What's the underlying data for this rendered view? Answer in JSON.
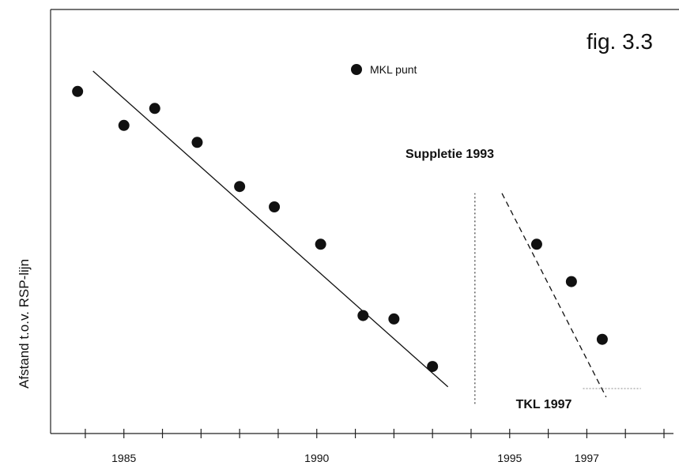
{
  "chart_data": {
    "type": "scatter",
    "figure_label": "fig.  3.3",
    "ylabel": "Afstand t.o.v. RSP-lijn",
    "xlabel": "",
    "x_unit": "year",
    "xlim": [
      1983.1,
      1999.0
    ],
    "ylim": [
      0,
      100
    ],
    "y_tick_labels": "none",
    "x_ticks": [
      1984,
      1985,
      1986,
      1987,
      1988,
      1989,
      1990,
      1991,
      1992,
      1993,
      1994,
      1995,
      1996,
      1997,
      1998,
      1999
    ],
    "x_tick_labels": [
      {
        "x": 1985,
        "label": "1985"
      },
      {
        "x": 1990,
        "label": "1990"
      },
      {
        "x": 1995,
        "label": "1995"
      },
      {
        "x": 1997,
        "label": "1997"
      }
    ],
    "legend": {
      "label": "MKL punt",
      "position": "top-center",
      "marker": "filled-circle"
    },
    "series": [
      {
        "name": "MKL punt",
        "style": "markers",
        "color": "#111111",
        "points": [
          {
            "x": 1983.8,
            "y": 94
          },
          {
            "x": 1985.0,
            "y": 84
          },
          {
            "x": 1985.8,
            "y": 89
          },
          {
            "x": 1986.9,
            "y": 79
          },
          {
            "x": 1988.0,
            "y": 66
          },
          {
            "x": 1988.9,
            "y": 60
          },
          {
            "x": 1990.1,
            "y": 49
          },
          {
            "x": 1991.2,
            "y": 28
          },
          {
            "x": 1992.0,
            "y": 27
          },
          {
            "x": 1993.0,
            "y": 13
          },
          {
            "x": 1995.7,
            "y": 49
          },
          {
            "x": 1996.6,
            "y": 38
          },
          {
            "x": 1997.4,
            "y": 21
          }
        ]
      },
      {
        "name": "",
        "style": "solid-line",
        "color": "#111111",
        "points": [
          {
            "x": 1984.2,
            "y": 100
          },
          {
            "x": 1993.4,
            "y": 7
          }
        ]
      },
      {
        "name": "",
        "style": "dashed-line",
        "color": "#111111",
        "points": [
          {
            "x": 1994.8,
            "y": 64
          },
          {
            "x": 1997.5,
            "y": 4
          }
        ]
      }
    ],
    "reference_lines": [
      {
        "kind": "vertical-dotted",
        "x": 1994.1,
        "y_from": 2,
        "y_to": 64,
        "color": "#111111"
      },
      {
        "kind": "horizontal-dotted",
        "y": 6.5,
        "x_from": 1996.9,
        "x_to": 1998.4,
        "color": "#999999"
      }
    ],
    "annotations": [
      {
        "text": "Suppletie 1993",
        "anchor_x": 1994.0,
        "anchor_y": 73
      },
      {
        "text": "TKL 1997",
        "anchor_x": 1996.0,
        "anchor_y": -2
      }
    ],
    "grid": false,
    "axes": {
      "left": true,
      "bottom": true,
      "top": true,
      "right": false
    }
  }
}
